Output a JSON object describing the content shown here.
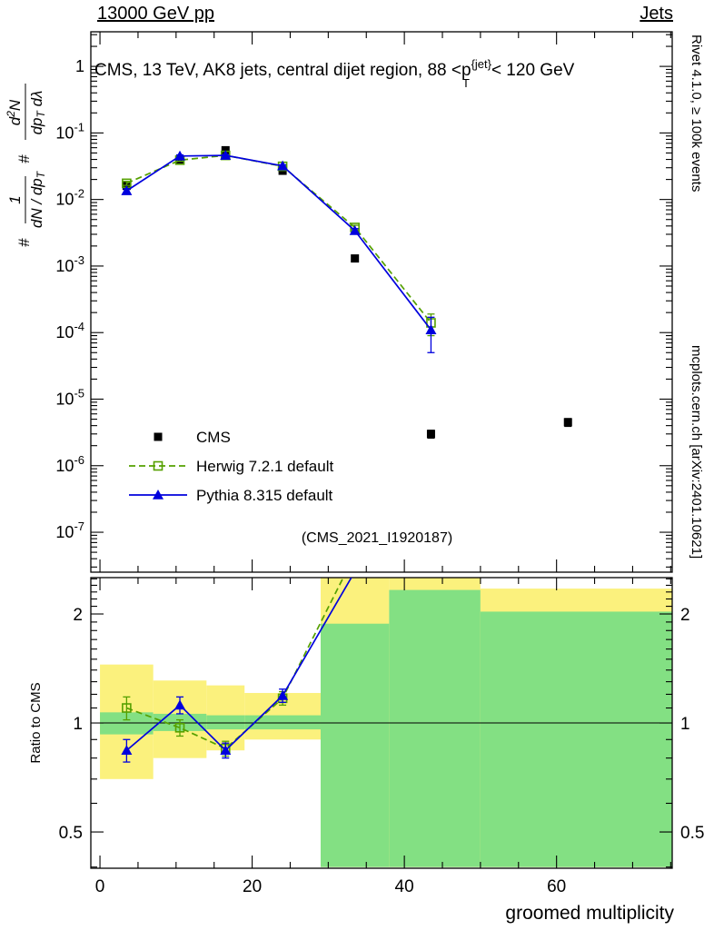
{
  "header": {
    "left": "13000 GeV pp",
    "right": "Jets"
  },
  "title_parts": {
    "prefix": "CMS, 13 TeV, AK8 jets, central dijet region, 88 <p",
    "sup": "{jet}",
    "sub": "T",
    "suffix": "< 120 GeV"
  },
  "side_labels": {
    "top_right": "Rivet 4.1.0, ≥ 100k events",
    "bottom_right": "mcplots.cern.ch [arXiv:2401.10621]"
  },
  "watermark": "(CMS_2021_I1920187)",
  "axis_labels": {
    "x": "groomed multiplicity",
    "y_ratio": "Ratio to CMS",
    "y_main_label": {
      "hash": "#",
      "frac1": {
        "num": "1",
        "den": "dN / dp",
        "den_sub": "T"
      },
      "frac2": {
        "num_pre": "d",
        "num_sup": "2",
        "num_post": "N",
        "den": "dp",
        "den_sub": "T",
        "den_post": " dλ"
      }
    }
  },
  "legend": [
    {
      "label": "CMS"
    },
    {
      "label": "Herwig 7.2.1 default"
    },
    {
      "label": "Pythia 8.315 default"
    }
  ],
  "colors": {
    "cms": "#000000",
    "herwig": "#55a000",
    "pythia": "#0000dd",
    "band_yellow": "#fbf17d",
    "band_green": "#83e083",
    "watermark": "#b0b0b0",
    "side_text": "#333333"
  },
  "chart_data": {
    "type": "line",
    "title": "CMS, 13 TeV, AK8 jets, central dijet region, 88 < pT^{jet} < 120 GeV",
    "xlabel": "groomed multiplicity",
    "ylabel": "# 1/(dN/dpT) · d²N/(dpT dλ)",
    "ylabel_ratio": "Ratio to CMS",
    "legend_position": "lower-left",
    "x": [
      3.5,
      10.5,
      16.5,
      24,
      33.5,
      43.5,
      61.5
    ],
    "series": [
      {
        "name": "CMS",
        "marker": "filled-square",
        "color_key": "cms",
        "line": "none",
        "y": [
          0.016,
          0.04,
          0.055,
          0.027,
          0.0013,
          3e-06,
          4.5e-06
        ],
        "yerr": [
          0.001,
          0.002,
          0.002,
          0.0015,
          0.0001,
          4e-07,
          6e-07
        ]
      },
      {
        "name": "Herwig 7.2.1 default",
        "marker": "open-square",
        "color_key": "herwig",
        "line": "dashed",
        "y": [
          0.0175,
          0.039,
          0.046,
          0.0315,
          0.0038,
          0.00014,
          null
        ],
        "yerr": [
          0.0012,
          0.0015,
          0.0015,
          0.0012,
          0.0003,
          5e-05,
          null
        ]
      },
      {
        "name": "Pythia 8.315 default",
        "marker": "filled-triangle",
        "color_key": "pythia",
        "line": "solid",
        "y": [
          0.0135,
          0.045,
          0.046,
          0.032,
          0.0034,
          0.00011,
          null
        ],
        "yerr": [
          0.001,
          0.0018,
          0.0015,
          0.0012,
          0.00025,
          6e-05,
          null
        ]
      }
    ],
    "axes": {
      "x_range": [
        -1.2,
        75.2
      ],
      "x_major_ticks": [
        0,
        20,
        40,
        60
      ],
      "x_minor_step": 5,
      "y_main_log_range": [
        -7.6,
        0.52
      ],
      "y_main_tick_exponents": [
        0,
        -1,
        -2,
        -3,
        -4,
        -5,
        -6,
        -7
      ],
      "ratio_range": [
        0.397,
        2.52
      ],
      "ratio_ticks": [
        0.5,
        1,
        2
      ],
      "ratio_minor_step": 0.1
    },
    "ratio": {
      "label": "Ratio to CMS",
      "reference_line": 1,
      "series": [
        {
          "name": "Herwig 7.2.1 default",
          "color_key": "herwig",
          "line": "dashed",
          "marker": "open-square",
          "values": [
            1.1,
            0.97,
            0.85,
            1.17,
            2.92,
            null,
            null
          ],
          "yerr": [
            0.08,
            0.05,
            0.04,
            0.05,
            null,
            null,
            null
          ]
        },
        {
          "name": "Pythia 8.315 default",
          "color_key": "pythia",
          "line": "solid",
          "marker": "filled-triangle",
          "values": [
            0.84,
            1.12,
            0.84,
            1.19,
            2.62,
            null,
            null
          ],
          "yerr": [
            0.06,
            0.06,
            0.04,
            0.05,
            null,
            null,
            null
          ]
        }
      ],
      "bands": [
        {
          "x0": 0,
          "x1": 7,
          "yellow": [
            0.7,
            1.45
          ],
          "green": [
            0.93,
            1.07
          ]
        },
        {
          "x0": 7,
          "x1": 14,
          "yellow": [
            0.8,
            1.31
          ],
          "green": [
            0.95,
            1.06
          ]
        },
        {
          "x0": 14,
          "x1": 19,
          "yellow": [
            0.84,
            1.27
          ],
          "green": [
            0.96,
            1.05
          ]
        },
        {
          "x0": 19,
          "x1": 29,
          "yellow": [
            0.9,
            1.21
          ],
          "green": [
            0.96,
            1.05
          ]
        },
        {
          "x0": 29,
          "x1": 38,
          "yellow": [
            0.4,
            2.52
          ],
          "green": [
            0.4,
            1.88
          ]
        },
        {
          "x0": 38,
          "x1": 50,
          "yellow": [
            0.4,
            2.52
          ],
          "green": [
            0.4,
            2.33
          ]
        },
        {
          "x0": 50,
          "x1": 75.2,
          "yellow": [
            0.4,
            2.35
          ],
          "green": [
            0.4,
            2.03
          ]
        }
      ]
    }
  }
}
